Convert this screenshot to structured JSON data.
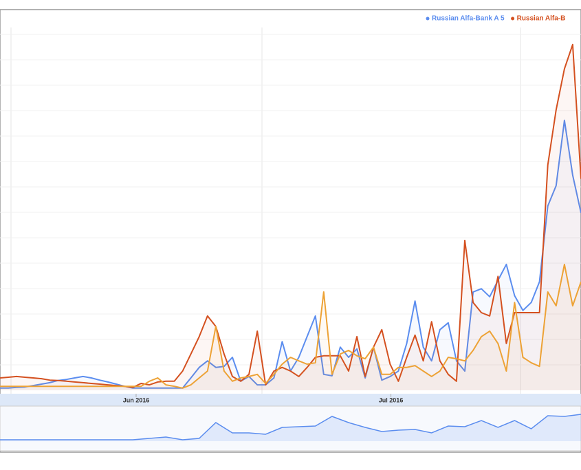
{
  "chart_data": [
    {
      "type": "line",
      "xlim": [
        0,
        70
      ],
      "ylim": [
        0,
        100
      ],
      "xticks": [
        {
          "value": 16.4,
          "label": "Jun 2016"
        },
        {
          "value": 47.1,
          "label": "Jul 2016"
        }
      ],
      "grid": true,
      "legend": "top-right",
      "series": [
        {
          "name": "Russian Alfa-Bank A 5",
          "color": "#5b8def",
          "values": [
            0.6,
            0.6,
            0.8,
            0.9,
            1.3,
            1.7,
            2.1,
            2.7,
            3.0,
            3.4,
            3.8,
            3.4,
            2.8,
            2.3,
            1.7,
            1.1,
            0.6,
            0.6,
            0.6,
            0.6,
            0.6,
            0.6,
            0.6,
            3.4,
            6.3,
            8.1,
            6.3,
            6.6,
            9.1,
            2.5,
            3.8,
            1.5,
            1.5,
            3.4,
            13.4,
            5.3,
            9.1,
            14.8,
            20.5,
            4.4,
            4.0,
            11.9,
            9.1,
            11.4,
            3.4,
            11.9,
            2.8,
            3.8,
            5.3,
            12.9,
            24.6,
            11.9,
            8.1,
            16.7,
            18.6,
            8.1,
            5.3,
            27.1,
            28.0,
            25.8,
            30.3,
            34.7,
            26.1,
            22.0,
            24.2,
            29.9,
            50.8,
            56.4,
            74.4,
            59.3,
            48.9
          ]
        },
        {
          "name": "Russian Alfa-B",
          "color": "#d4501f",
          "values": [
            3.4,
            3.6,
            3.8,
            3.6,
            3.4,
            3.2,
            2.8,
            2.7,
            2.5,
            2.3,
            2.1,
            1.9,
            1.7,
            1.5,
            1.3,
            1.1,
            0.8,
            1.9,
            1.5,
            2.3,
            2.5,
            2.5,
            5.3,
            10.0,
            14.8,
            20.5,
            17.6,
            10.0,
            3.8,
            2.5,
            4.4,
            16.3,
            1.5,
            5.3,
            6.3,
            5.3,
            3.8,
            6.3,
            9.1,
            9.5,
            9.5,
            9.5,
            5.3,
            14.8,
            3.8,
            11.9,
            16.7,
            7.2,
            2.5,
            9.1,
            15.2,
            8.1,
            18.9,
            8.1,
            4.4,
            2.5,
            41.3,
            24.2,
            21.4,
            20.5,
            31.4,
            12.9,
            21.4,
            21.4,
            21.4,
            21.4,
            62.1,
            77.3,
            88.6,
            95.3,
            58.3
          ]
        },
        {
          "color": "#eda235",
          "values": [
            1.1,
            1.1,
            1.1,
            1.1,
            1.1,
            1.1,
            1.1,
            1.1,
            1.1,
            1.1,
            1.1,
            1.1,
            1.1,
            1.1,
            1.1,
            1.1,
            1.1,
            1.1,
            2.5,
            3.4,
            1.5,
            1.1,
            0.6,
            1.5,
            3.4,
            5.3,
            17.6,
            5.3,
            2.5,
            3.4,
            3.8,
            4.4,
            1.9,
            4.4,
            7.2,
            9.1,
            8.1,
            7.2,
            7.6,
            27.1,
            4.4,
            10.0,
            11.0,
            9.5,
            8.7,
            11.9,
            4.4,
            4.4,
            6.3,
            6.3,
            6.8,
            5.3,
            3.8,
            5.3,
            9.1,
            8.7,
            8.1,
            11.0,
            14.8,
            16.3,
            12.9,
            5.3,
            24.2,
            9.1,
            7.6,
            6.6,
            27.1,
            23.3,
            34.7,
            23.3,
            29.9
          ]
        }
      ]
    },
    {
      "type": "area",
      "xlim": [
        0,
        35
      ],
      "ylim": [
        0,
        100
      ],
      "color": "#5b8def",
      "values": [
        4.5,
        4.5,
        4.5,
        4.5,
        4.5,
        4.5,
        4.5,
        4.5,
        4.5,
        9.1,
        13.6,
        4.5,
        9.1,
        61.4,
        27.3,
        27.3,
        22.7,
        45.5,
        47.7,
        50,
        81.8,
        61.4,
        45.5,
        31.8,
        36.4,
        38.6,
        27.3,
        50,
        47.7,
        68.2,
        45.5,
        68.2,
        40.9,
        84.1,
        81.8,
        88.6
      ]
    }
  ]
}
